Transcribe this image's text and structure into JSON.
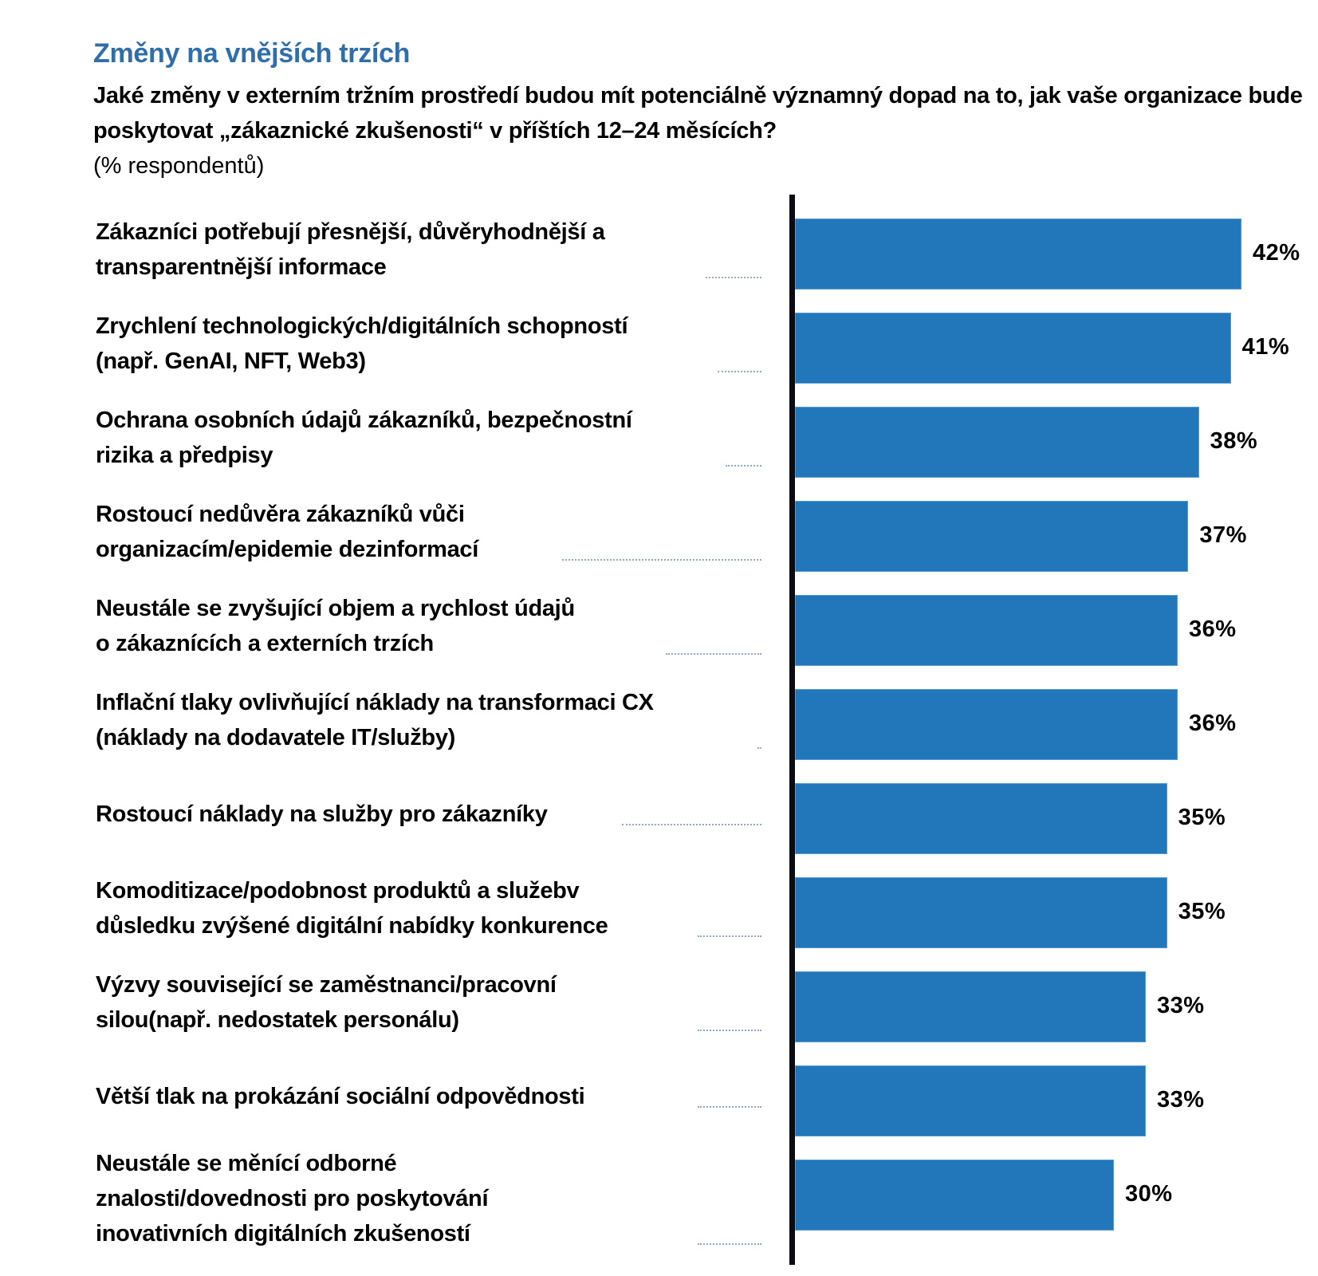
{
  "colors": {
    "title": "#2f6ea8",
    "bar": "#2277bb",
    "axis": "#0b0b14",
    "leader": "#8ea8c8"
  },
  "header": {
    "title": "Změny na vnějších trzích",
    "question": "Jaké změny v externím tržním prostředí budou mít potenciálně významný dopad na to, jak vaše organizace bude poskytovat „zákaznické zkušenosti“ v příštích 12–24 měsících?",
    "unit": "(% respondentů)"
  },
  "chart_data": {
    "type": "bar",
    "orientation": "horizontal",
    "title": "Změny na vnějších trzích",
    "subtitle": "Jaké změny v externím tržním prostředí budou mít potenciálně významný dopad na to, jak vaše organizace bude poskytovat „zákaznické zkušenosti“ v příštích 12–24 měsících?",
    "xlabel": "(% respondentů)",
    "ylabel": "",
    "xlim": [
      0,
      45
    ],
    "grid": false,
    "legend": "none",
    "categories": [
      "Zákazníci potřebují přesnější, důvěryhodnější a transparentnější informace",
      "Zrychlení technologických/digitálních schopností (např. GenAI, NFT, Web3)",
      "Ochrana osobních údajů zákazníků, bezpečnostní rizika a předpisy",
      "Rostoucí nedůvěra zákazníků vůči organizacím/epidemie dezinformací",
      "Neustále se zvyšující objem a rychlost údajů o zákaznících a externích trzích",
      "Inflační tlaky ovlivňující náklady na transformaci CX (náklady na dodavatele IT/služby)",
      "Rostoucí náklady na služby pro zákazníky",
      "Komoditizace/podobnost produktů a služebv důsledku zvýšené digitální nabídky konkurence",
      "Výzvy související se zaměstnanci/pracovní silou(např. nedostatek personálu)",
      "Větší tlak na prokázání sociální odpovědnosti",
      "Neustále se měnící odborné znalosti/dovednosti pro poskytování inovativních digitálních zkušeností"
    ],
    "label_lines": [
      [
        "Zákazníci potřebují přesnější, důvěryhodnější a",
        "transparentnější informace"
      ],
      [
        "Zrychlení technologických/digitálních schopností",
        "(např. GenAI, NFT, Web3)"
      ],
      [
        "Ochrana osobních údajů zákazníků, bezpečnostní",
        "rizika a předpisy"
      ],
      [
        "Rostoucí nedůvěra zákazníků vůči",
        "organizacím/epidemie dezinformací"
      ],
      [
        "Neustále se zvyšující objem a rychlost údajů",
        "o zákaznících a externích trzích"
      ],
      [
        "Inflační tlaky ovlivňující náklady na transformaci CX",
        "(náklady na dodavatele IT/služby)"
      ],
      [
        "Rostoucí náklady na služby pro zákazníky"
      ],
      [
        "Komoditizace/podobnost produktů a služebv",
        "důsledku zvýšené digitální nabídky konkurence"
      ],
      [
        "Výzvy související se zaměstnanci/pracovní",
        "silou(např. nedostatek personálu)"
      ],
      [
        "Větší tlak na prokázání sociální odpovědnosti"
      ],
      [
        "Neustále se měnící odborné",
        "znalosti/dovednosti pro poskytování",
        "inovativních digitálních zkušeností"
      ]
    ],
    "values": [
      42,
      41,
      38,
      37,
      36,
      36,
      35,
      35,
      33,
      33,
      30
    ],
    "data_labels": [
      "42%",
      "41%",
      "38%",
      "37%",
      "36%",
      "36%",
      "35%",
      "35%",
      "33%",
      "33%",
      "30%"
    ]
  }
}
